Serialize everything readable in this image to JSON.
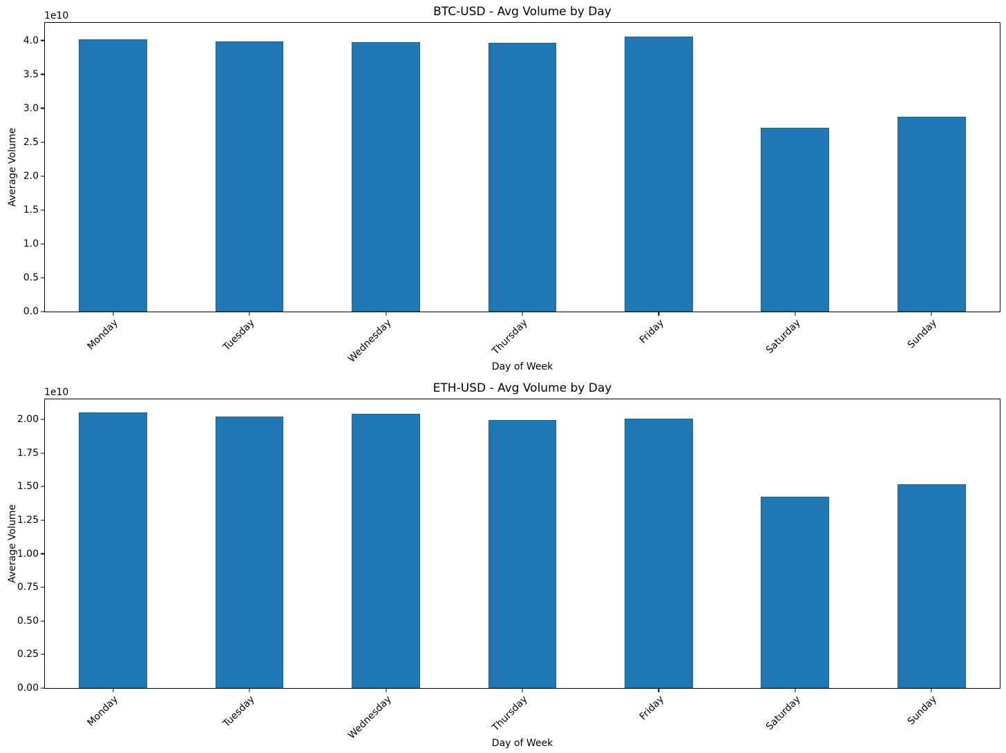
{
  "figure": {
    "background": "#ffffff",
    "text_color": "#000000",
    "spine_color": "#000000"
  },
  "chart_data": [
    {
      "type": "bar",
      "title": "BTC-USD - Avg Volume by Day",
      "xlabel": "Day of Week",
      "ylabel": "Average Volume",
      "offset_text": "1e10",
      "bar_color": "#1f77b4",
      "grid": false,
      "legend": "none",
      "bar_width_fraction": 0.5,
      "x_tick_rotation_deg": 45,
      "categories": [
        "Monday",
        "Tuesday",
        "Wednesday",
        "Thursday",
        "Friday",
        "Saturday",
        "Sunday"
      ],
      "values": [
        40200000000,
        39900000000,
        39700000000,
        39600000000,
        40600000000,
        27100000000,
        28700000000
      ],
      "ylim": [
        0,
        42600000000
      ],
      "yticks": [
        {
          "v": 0,
          "label": "0.0"
        },
        {
          "v": 5000000000,
          "label": "0.5"
        },
        {
          "v": 10000000000,
          "label": "1.0"
        },
        {
          "v": 15000000000,
          "label": "1.5"
        },
        {
          "v": 20000000000,
          "label": "2.0"
        },
        {
          "v": 25000000000,
          "label": "2.5"
        },
        {
          "v": 30000000000,
          "label": "3.0"
        },
        {
          "v": 35000000000,
          "label": "3.5"
        },
        {
          "v": 40000000000,
          "label": "4.0"
        }
      ]
    },
    {
      "type": "bar",
      "title": "ETH-USD - Avg Volume by Day",
      "xlabel": "Day of Week",
      "ylabel": "Average Volume",
      "offset_text": "1e10",
      "bar_color": "#1f77b4",
      "grid": false,
      "legend": "none",
      "bar_width_fraction": 0.5,
      "x_tick_rotation_deg": 45,
      "categories": [
        "Monday",
        "Tuesday",
        "Wednesday",
        "Thursday",
        "Friday",
        "Saturday",
        "Sunday"
      ],
      "values": [
        20500000000,
        20200000000,
        20400000000,
        19950000000,
        20050000000,
        14250000000,
        15150000000
      ],
      "ylim": [
        0,
        21500000000
      ],
      "yticks": [
        {
          "v": 0,
          "label": "0.00"
        },
        {
          "v": 2500000000,
          "label": "0.25"
        },
        {
          "v": 5000000000,
          "label": "0.50"
        },
        {
          "v": 7500000000,
          "label": "0.75"
        },
        {
          "v": 10000000000,
          "label": "1.00"
        },
        {
          "v": 12500000000,
          "label": "1.25"
        },
        {
          "v": 15000000000,
          "label": "1.50"
        },
        {
          "v": 17500000000,
          "label": "1.75"
        },
        {
          "v": 20000000000,
          "label": "2.00"
        }
      ]
    }
  ]
}
